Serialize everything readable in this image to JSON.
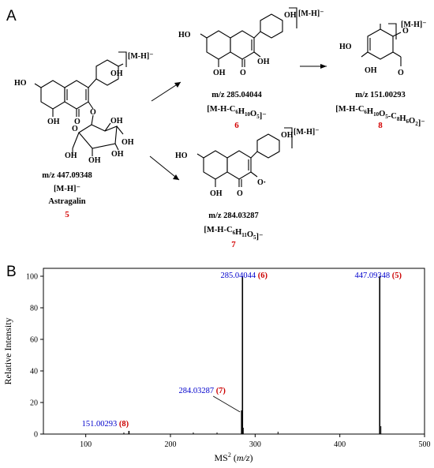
{
  "panels": {
    "a": "A",
    "b": "B"
  },
  "scheme": {
    "ion_tag": "[M-H]⁻",
    "compounds": [
      {
        "id": "c5",
        "mz": "m/z 447.09348",
        "formula": "[M-H]⁻",
        "name": "Astragalin",
        "number": "5"
      },
      {
        "id": "c6",
        "mz": "m/z 285.04044",
        "formula": "[M-H-C6H10O5]⁻",
        "number": "6"
      },
      {
        "id": "c7",
        "mz": "m/z 284.03287",
        "formula": "[M-H-C6H11O5]⁻",
        "number": "7"
      },
      {
        "id": "c8",
        "mz": "m/z 151.00293",
        "formula": "[M-H-C6H10O5-C8H6O2]⁻",
        "number": "8"
      }
    ],
    "atoms": {
      "oh": "OH",
      "ho": "HO",
      "o": "O",
      "o_rad": "O·"
    }
  },
  "chart_data": {
    "type": "bar",
    "xlabel": "MS2 (m/z)",
    "ylabel": "Relative Intensity",
    "xlim": [
      50,
      500
    ],
    "ylim": [
      0,
      105
    ],
    "xticks": [
      100,
      200,
      300,
      400,
      500
    ],
    "yticks": [
      0,
      20,
      40,
      60,
      80,
      100
    ],
    "peaks": [
      {
        "mz": 151.00293,
        "intensity": 2,
        "label": "151.00293",
        "tag": "(8)"
      },
      {
        "mz": 284.03287,
        "intensity": 15,
        "label": "284.03287",
        "tag": "(7)"
      },
      {
        "mz": 285.04044,
        "intensity": 100,
        "label": "285.04044",
        "tag": "(6)"
      },
      {
        "mz": 447.09348,
        "intensity": 100,
        "label": "447.09348",
        "tag": "(5)"
      }
    ],
    "minor_peaks": [
      {
        "mz": 145.0,
        "intensity": 1
      },
      {
        "mz": 227.0,
        "intensity": 1
      },
      {
        "mz": 255.0,
        "intensity": 1
      },
      {
        "mz": 286.0,
        "intensity": 4
      },
      {
        "mz": 327.0,
        "intensity": 1.5
      },
      {
        "mz": 448.5,
        "intensity": 5
      }
    ],
    "colors": {
      "label": "#0000cc",
      "tag": "#cc0000"
    }
  }
}
